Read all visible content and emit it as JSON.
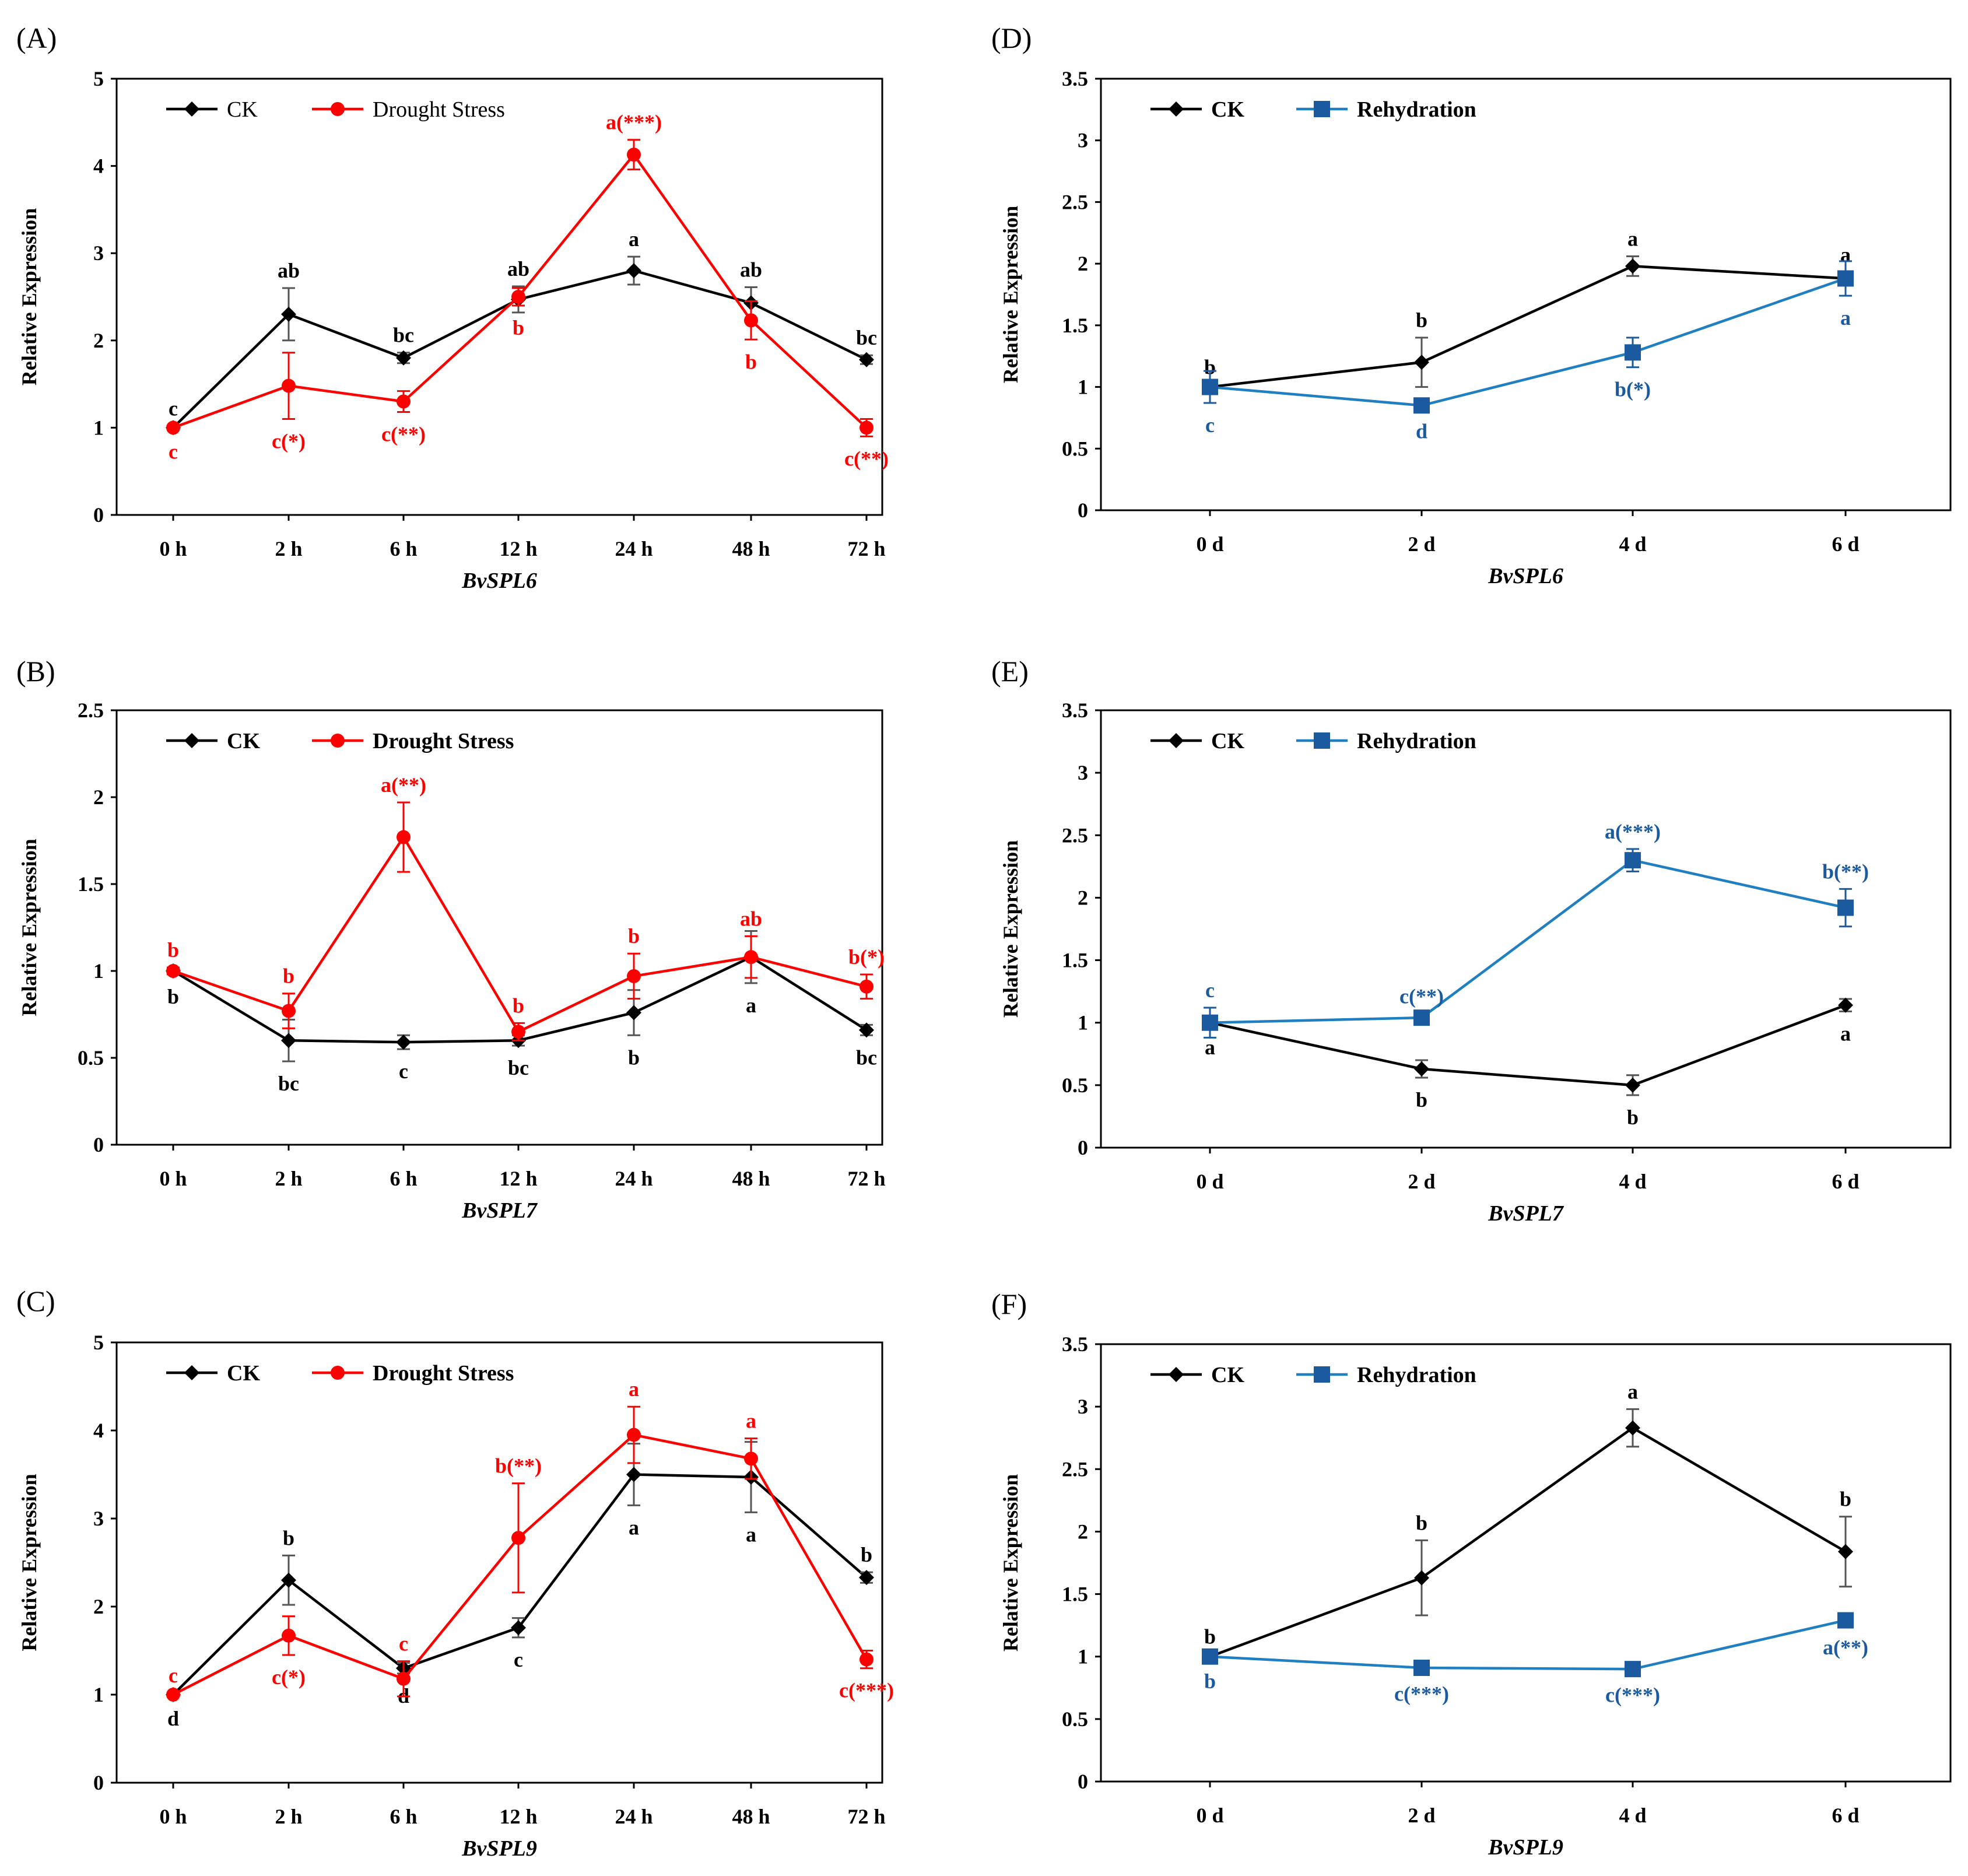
{
  "colors": {
    "ck": "#000000",
    "drought": "#ff0000",
    "rehyd_line": "#1f7fc1",
    "rehyd_marker": "#1b5a9e",
    "rehyd_text": "#1b5a9e"
  },
  "chart_data": [
    {
      "panel": "(A)",
      "type": "line",
      "xlabel": "BvSPL6",
      "ylabel": "Relative Expression",
      "ylim": [
        0,
        5
      ],
      "yticks": [
        "0",
        "1",
        "2",
        "3",
        "4",
        "5"
      ],
      "categories": [
        "0 h",
        "2 h",
        "6 h",
        "12 h",
        "24 h",
        "48 h",
        "72 h"
      ],
      "legend_bold": false,
      "series": [
        {
          "name": "CK",
          "marker": "diamond",
          "values": [
            1.0,
            2.3,
            1.8,
            2.47,
            2.8,
            2.43,
            1.78
          ],
          "errors": [
            0.02,
            0.3,
            0.06,
            0.15,
            0.16,
            0.18,
            0.05
          ],
          "labels": [
            "c",
            "ab",
            "bc",
            "ab",
            "a",
            "ab",
            "bc"
          ],
          "label_pos": [
            "above",
            "above",
            "above",
            "above",
            "above",
            "above",
            "above"
          ]
        },
        {
          "name": "Drought Stress",
          "marker": "circle",
          "values": [
            1.0,
            1.48,
            1.3,
            2.5,
            4.13,
            2.23,
            1.0
          ],
          "errors": [
            0.02,
            0.38,
            0.12,
            0.1,
            0.17,
            0.22,
            0.1
          ],
          "labels": [
            "c",
            "c(*)",
            "c(**)",
            "b",
            "a(***)",
            "b",
            "c(**)"
          ],
          "label_pos": [
            "below",
            "below",
            "below",
            "below",
            "above",
            "below",
            "below"
          ]
        }
      ]
    },
    {
      "panel": "(B)",
      "type": "line",
      "xlabel": "BvSPL7",
      "ylabel": "Relative Expression",
      "ylim": [
        0,
        2.5
      ],
      "yticks": [
        "0",
        "0.5",
        "1",
        "1.5",
        "2",
        "2.5"
      ],
      "categories": [
        "0 h",
        "2 h",
        "6 h",
        "12 h",
        "24 h",
        "48 h",
        "72 h"
      ],
      "legend_bold": true,
      "series": [
        {
          "name": "CK",
          "marker": "diamond",
          "values": [
            1.0,
            0.6,
            0.59,
            0.6,
            0.76,
            1.08,
            0.66
          ],
          "errors": [
            0.02,
            0.12,
            0.04,
            0.03,
            0.13,
            0.15,
            0.03
          ],
          "labels": [
            "b",
            "bc",
            "c",
            "bc",
            "b",
            "a",
            "bc"
          ],
          "label_pos": [
            "below",
            "below",
            "below",
            "below",
            "below",
            "below",
            "below"
          ]
        },
        {
          "name": "Drought Stress",
          "marker": "circle",
          "values": [
            1.0,
            0.77,
            1.77,
            0.65,
            0.97,
            1.08,
            0.91
          ],
          "errors": [
            0.02,
            0.1,
            0.2,
            0.05,
            0.13,
            0.12,
            0.07
          ],
          "labels": [
            "b",
            "b",
            "a(**)",
            "b",
            "b",
            "ab",
            "b(*)"
          ],
          "label_pos": [
            "above",
            "above",
            "above",
            "above",
            "above",
            "above",
            "above"
          ]
        }
      ]
    },
    {
      "panel": "(C)",
      "type": "line",
      "xlabel": "BvSPL9",
      "ylabel": "Relative Expression",
      "ylim": [
        0,
        5
      ],
      "yticks": [
        "0",
        "1",
        "2",
        "3",
        "4",
        "5"
      ],
      "categories": [
        "0 h",
        "2 h",
        "6 h",
        "12 h",
        "24 h",
        "48 h",
        "72 h"
      ],
      "legend_bold": true,
      "series": [
        {
          "name": "CK",
          "marker": "diamond",
          "values": [
            1.0,
            2.3,
            1.3,
            1.76,
            3.5,
            3.47,
            2.33
          ],
          "errors": [
            0.02,
            0.28,
            0.06,
            0.11,
            0.35,
            0.4,
            0.06
          ],
          "labels": [
            "d",
            "b",
            "d",
            "c",
            "a",
            "a",
            "b"
          ],
          "label_pos": [
            "below",
            "above",
            "below",
            "below",
            "below",
            "below",
            "above"
          ]
        },
        {
          "name": "Drought Stress",
          "marker": "circle",
          "values": [
            1.0,
            1.67,
            1.18,
            2.78,
            3.95,
            3.68,
            1.4
          ],
          "errors": [
            0.02,
            0.22,
            0.2,
            0.62,
            0.32,
            0.23,
            0.1
          ],
          "labels": [
            "c",
            "c(*)",
            "c",
            "b(**)",
            "a",
            "a",
            "c(***)"
          ],
          "label_pos": [
            "above",
            "below",
            "above",
            "above",
            "above",
            "above",
            "below"
          ]
        }
      ]
    },
    {
      "panel": "(D)",
      "type": "line",
      "xlabel": "BvSPL6",
      "ylabel": "Relative Expression",
      "ylim": [
        0,
        3.5
      ],
      "yticks": [
        "0",
        "0.5",
        "1",
        "1.5",
        "2",
        "2.5",
        "3",
        "3.5"
      ],
      "categories": [
        "0 d",
        "2 d",
        "4 d",
        "6 d"
      ],
      "legend_bold": true,
      "series": [
        {
          "name": "CK",
          "marker": "diamond",
          "values": [
            1.0,
            1.2,
            1.98,
            1.88
          ],
          "errors": [
            0.02,
            0.2,
            0.08,
            0.05
          ],
          "labels": [
            "b",
            "b",
            "a",
            "a"
          ],
          "label_pos": [
            "above",
            "above",
            "above",
            "above"
          ]
        },
        {
          "name": "Rehydration",
          "marker": "square",
          "values": [
            1.0,
            0.85,
            1.28,
            1.88
          ],
          "errors": [
            0.13,
            0.03,
            0.12,
            0.14
          ],
          "labels": [
            "c",
            "d",
            "b(*)",
            "a"
          ],
          "label_pos": [
            "below",
            "below",
            "below",
            "below"
          ]
        }
      ]
    },
    {
      "panel": "(E)",
      "type": "line",
      "xlabel": "BvSPL7",
      "ylabel": "Relative Expression",
      "ylim": [
        0,
        3.5
      ],
      "yticks": [
        "0",
        "0.5",
        "1",
        "1.5",
        "2",
        "2.5",
        "3",
        "3.5"
      ],
      "categories": [
        "0 d",
        "2 d",
        "4 d",
        "6 d"
      ],
      "legend_bold": true,
      "series": [
        {
          "name": "CK",
          "marker": "diamond",
          "values": [
            1.0,
            0.63,
            0.5,
            1.14
          ],
          "errors": [
            0.02,
            0.07,
            0.08,
            0.05
          ],
          "labels": [
            "a",
            "b",
            "b",
            "a"
          ],
          "label_pos": [
            "below",
            "below",
            "below",
            "below"
          ]
        },
        {
          "name": "Rehydration",
          "marker": "square",
          "values": [
            1.0,
            1.04,
            2.3,
            1.92
          ],
          "errors": [
            0.12,
            0.03,
            0.09,
            0.15
          ],
          "labels": [
            "c",
            "c(**)",
            "a(***)",
            "b(**)"
          ],
          "label_pos": [
            "above",
            "above",
            "above",
            "above"
          ]
        }
      ]
    },
    {
      "panel": "(F)",
      "type": "line",
      "xlabel": "BvSPL9",
      "ylabel": "Relative Expression",
      "ylim": [
        0,
        3.5
      ],
      "yticks": [
        "0",
        "0.5",
        "1",
        "1.5",
        "2",
        "2.5",
        "3",
        "3.5"
      ],
      "categories": [
        "0 d",
        "2 d",
        "4 d",
        "6 d"
      ],
      "legend_bold": true,
      "series": [
        {
          "name": "CK",
          "marker": "diamond",
          "values": [
            1.0,
            1.63,
            2.83,
            1.84
          ],
          "errors": [
            0.02,
            0.3,
            0.15,
            0.28
          ],
          "labels": [
            "b",
            "b",
            "a",
            "b"
          ],
          "label_pos": [
            "above",
            "above",
            "above",
            "above"
          ]
        },
        {
          "name": "Rehydration",
          "marker": "square",
          "values": [
            1.0,
            0.91,
            0.9,
            1.29
          ],
          "errors": [
            0.02,
            0.03,
            0.03,
            0.04
          ],
          "labels": [
            "b",
            "c(***)",
            "c(***)",
            "a(**)"
          ],
          "label_pos": [
            "below",
            "below",
            "below",
            "below"
          ]
        }
      ]
    }
  ]
}
